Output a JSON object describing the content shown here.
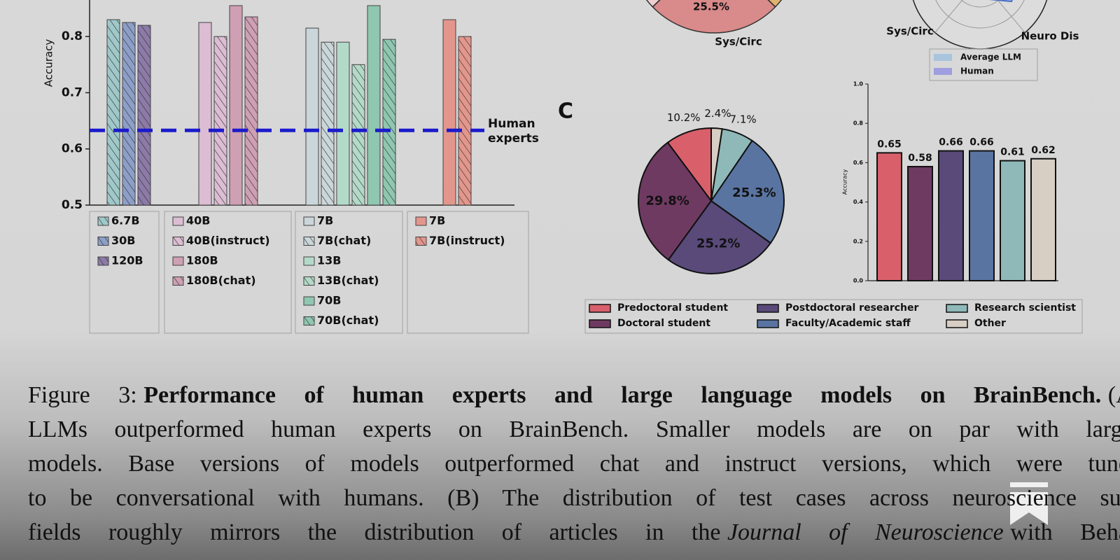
{
  "chart_data": [
    {
      "type": "grouped_bar",
      "ylabel": "Accuracy",
      "ylim": [
        0.5,
        0.865
      ],
      "yticks": [
        0.5,
        0.6,
        0.7,
        0.8
      ],
      "groups": [
        [
          {
            "name": "6.7B",
            "color": "#9fc8c9",
            "hatch": true,
            "value": 0.83
          },
          {
            "name": "30B",
            "color": "#8d9fc8",
            "hatch": true,
            "value": 0.825
          },
          {
            "name": "120B",
            "color": "#8c7aa8",
            "hatch": true,
            "value": 0.82
          }
        ],
        [
          {
            "name": "40B",
            "color": "#dcbdd3",
            "hatch": false,
            "value": 0.825
          },
          {
            "name": "40B(instruct)",
            "color": "#dcbdd3",
            "hatch": true,
            "value": 0.8
          },
          {
            "name": "180B",
            "color": "#cf9fb3",
            "hatch": false,
            "value": 0.855
          },
          {
            "name": "180B(chat)",
            "color": "#cf9fb3",
            "hatch": true,
            "value": 0.835
          }
        ],
        [
          {
            "name": "7B",
            "color": "#cad6d9",
            "hatch": false,
            "value": 0.815
          },
          {
            "name": "7B(chat)",
            "color": "#cad6d9",
            "hatch": true,
            "value": 0.79
          },
          {
            "name": "13B",
            "color": "#b3dac9",
            "hatch": false,
            "value": 0.79
          },
          {
            "name": "13B(chat)",
            "color": "#b3dac9",
            "hatch": true,
            "value": 0.75
          },
          {
            "name": "70B",
            "color": "#8fc7b1",
            "hatch": false,
            "value": 0.855
          },
          {
            "name": "70B(chat)",
            "color": "#8fc7b1",
            "hatch": true,
            "value": 0.795
          }
        ],
        [
          {
            "name": "7B",
            "color": "#e3968c",
            "hatch": false,
            "value": 0.83
          },
          {
            "name": "7B(instruct)",
            "color": "#e3968c",
            "hatch": true,
            "value": 0.8
          }
        ]
      ],
      "reference": {
        "value": 0.633,
        "label_lines": [
          "Human",
          "experts"
        ],
        "color": "#1a1acc"
      }
    },
    {
      "type": "pie_partial",
      "values": [
        25.5
      ],
      "value_labels": [
        "25.5%"
      ],
      "color": "#d98a8a",
      "label": "Sys/Circ"
    },
    {
      "type": "radar_partial",
      "axis_labels": [
        "Sys/Circ",
        "Neuro Dis"
      ],
      "legend": [
        {
          "name": "Average LLM",
          "color": "#a9c4dd"
        },
        {
          "name": "Human",
          "color": "#9e9ee0"
        }
      ]
    },
    {
      "type": "pie",
      "panel_label": "C",
      "categories": [
        "Predoctoral student",
        "Doctoral student",
        "Postdoctoral researcher",
        "Faculty/Academic staff",
        "Research scientist",
        "Other"
      ],
      "values": [
        10.2,
        29.8,
        25.2,
        25.3,
        7.1,
        2.4
      ],
      "value_labels": [
        "10.2%",
        "29.8%",
        "25.2%",
        "25.3%",
        "7.1%",
        "2.4%"
      ],
      "colors": [
        "#d9606b",
        "#6f3a62",
        "#594a7a",
        "#5a74a2",
        "#8fb9b9",
        "#d8cfc4"
      ]
    },
    {
      "type": "bar",
      "ylabel": "Accuracy",
      "ylim": [
        0,
        1
      ],
      "yticks": [
        {
          "value": 0,
          "label": "0.0"
        },
        0.2,
        0.4,
        0.6,
        0.8,
        {
          "value": 1,
          "label": "1.0"
        }
      ],
      "values": [
        0.65,
        0.58,
        0.66,
        0.66,
        0.61,
        0.62
      ],
      "colors": [
        "#d9606b",
        "#6f3a62",
        "#594a7a",
        "#5a74a2",
        "#8fb9b9",
        "#d8cfc4"
      ]
    }
  ],
  "caption": {
    "lines": [
      [
        {
          "text": "Figure 3:",
          "style": "normal"
        },
        {
          "text": "Performance of human experts and large language models on BrainBench.",
          "style": "bold"
        },
        {
          "text": "(A)",
          "style": "normal"
        }
      ],
      [
        {
          "text": "LLMs outperformed human experts on BrainBench.  Smaller models are on par with larger",
          "style": "normal"
        }
      ],
      [
        {
          "text": "models.  Base versions of models outperformed chat and instruct versions, which were tuned",
          "style": "normal"
        }
      ],
      [
        {
          "text": "to be conversational with humans.  (B) The distribution of test cases across neuroscience sub-",
          "style": "normal"
        }
      ],
      [
        {
          "text": "fields roughly mirrors the distribution of articles in the",
          "style": "normal"
        },
        {
          "text": "Journal of Neuroscience",
          "style": "italic"
        },
        {
          "text": "with Behav",
          "style": "normal"
        }
      ]
    ]
  }
}
